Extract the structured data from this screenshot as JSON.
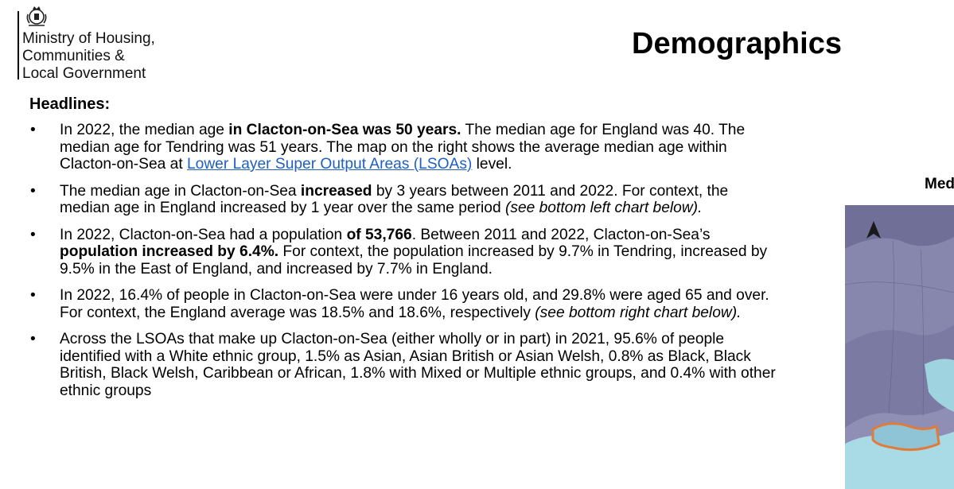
{
  "header": {
    "org_lines": [
      "Ministry of Housing,",
      "Communities &",
      "Local Government"
    ],
    "page_title": "Demographics"
  },
  "content": {
    "headlines_label": "Headlines:",
    "bullet_symbol": "•",
    "bullets": [
      {
        "parts": [
          {
            "text": "In 2022, the median age "
          },
          {
            "text": "in Clacton-on-Sea was 50 years.",
            "style": "bold"
          },
          {
            "text": " The median age for England was 40. The median age for Tendring was 51 years. The map on the right shows the average median age within Clacton-on-Sea at "
          },
          {
            "text": "Lower Layer Super Output Areas (LSOAs)",
            "style": "link"
          },
          {
            "text": " level."
          }
        ]
      },
      {
        "parts": [
          {
            "text": "The median age in Clacton-on-Sea "
          },
          {
            "text": "increased",
            "style": "bold"
          },
          {
            "text": " by 3 years between 2011 and 2022. For context, the median age in England increased by 1 year over the same period "
          },
          {
            "text": "(see bottom left chart below).",
            "style": "italic"
          }
        ]
      },
      {
        "parts": [
          {
            "text": "In 2022, Clacton-on-Sea had a population "
          },
          {
            "text": "of 53,766",
            "style": "bold"
          },
          {
            "text": ". Between 2011 and 2022, Clacton-on-Sea’s "
          },
          {
            "text": "population increased by 6.4%.",
            "style": "bold"
          },
          {
            "text": " For context, the population increased by 9.7% in Tendring, increased by 9.5% in the East of England, and increased by 7.7% in England."
          }
        ]
      },
      {
        "parts": [
          {
            "text": "In 2022, 16.4% of people in Clacton-on-Sea were under 16 years old, and 29.8% were aged 65 and over. For context, the England average was 18.5% and 18.6%, respectively "
          },
          {
            "text": "(see bottom right chart below).",
            "style": "italic"
          }
        ]
      },
      {
        "parts": [
          {
            "text": "Across the LSOAs that make up Clacton-on-Sea (either wholly or in part) in 2021, 95.6% of people identified with a White ethnic group, 1.5% as Asian, Asian British or Asian Welsh, 0.8% as Black, Black British, Black Welsh, Caribbean or African, 1.8% with Mixed or Multiple ethnic groups, and 0.4% with other ethnic groups"
          }
        ]
      }
    ]
  },
  "map": {
    "title_fragment": "Med",
    "north_arrow_icon": "north-arrow-icon",
    "colors": {
      "older_area": "#6f6f98",
      "mid_area": "#8f8fb6",
      "younger_area": "#9fd3df",
      "sea": "#a8dbe6",
      "boundary": "#e07b39"
    }
  }
}
